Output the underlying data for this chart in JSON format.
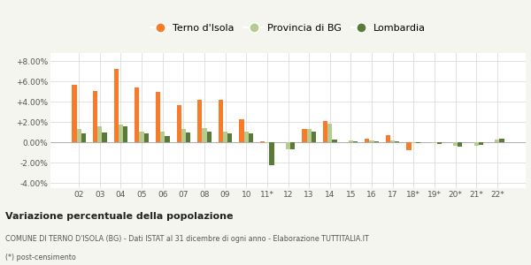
{
  "categories": [
    "02",
    "03",
    "04",
    "05",
    "06",
    "07",
    "08",
    "09",
    "10",
    "11*",
    "12",
    "13",
    "14",
    "15",
    "16",
    "17",
    "18*",
    "19*",
    "20*",
    "21*",
    "22*"
  ],
  "terno": [
    5.7,
    5.1,
    7.2,
    5.4,
    5.0,
    3.7,
    4.15,
    4.2,
    2.3,
    0.15,
    null,
    1.35,
    2.1,
    null,
    0.35,
    0.75,
    -0.8,
    null,
    null,
    null,
    null
  ],
  "provincia": [
    1.35,
    1.6,
    1.8,
    1.1,
    1.05,
    1.35,
    1.45,
    1.05,
    1.05,
    -0.05,
    -0.65,
    1.35,
    1.85,
    0.2,
    0.2,
    0.2,
    -0.1,
    -0.1,
    -0.3,
    -0.3,
    0.3
  ],
  "lombardia": [
    0.85,
    1.0,
    1.6,
    0.9,
    0.65,
    1.0,
    1.1,
    0.85,
    0.85,
    -2.2,
    -0.7,
    1.05,
    0.3,
    0.1,
    0.1,
    0.1,
    -0.05,
    -0.15,
    -0.4,
    -0.25,
    0.35
  ],
  "color_terno": "#f97b2a",
  "color_provincia": "#b5cc8e",
  "color_lombardia": "#5a7a3a",
  "ylim": [
    -4.5,
    8.8
  ],
  "yticks": [
    -4.0,
    -2.0,
    0.0,
    2.0,
    4.0,
    6.0,
    8.0
  ],
  "ytick_labels": [
    "-4.00%",
    "-2.00%",
    "0.00%",
    "+2.00%",
    "+4.00%",
    "+6.00%",
    "+8.00%"
  ],
  "title": "Variazione percentuale della popolazione",
  "subtitle": "COMUNE DI TERNO D'ISOLA (BG) - Dati ISTAT al 31 dicembre di ogni anno - Elaborazione TUTTITALIA.IT",
  "footnote": "(*) post-censimento",
  "plot_bg": "#ffffff",
  "fig_bg": "#f5f5f0",
  "bar_width": 0.22
}
